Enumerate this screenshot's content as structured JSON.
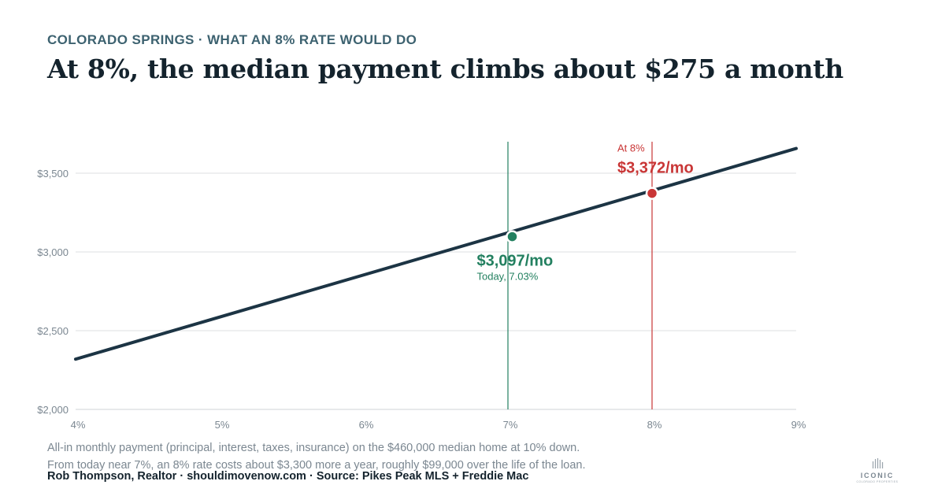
{
  "kicker": "COLORADO SPRINGS · WHAT AN 8% RATE WOULD DO",
  "headline": "At 8%, the median payment climbs about $275 a month",
  "chart_data": {
    "type": "line",
    "title": "",
    "xlabel": "",
    "ylabel": "",
    "xlim": [
      4,
      9
    ],
    "ylim": [
      2000,
      3700
    ],
    "x_ticks": [
      4,
      5,
      6,
      7,
      8,
      9
    ],
    "x_tick_labels": [
      "4%",
      "5%",
      "6%",
      "7%",
      "8%",
      "9%"
    ],
    "y_ticks": [
      2000,
      2500,
      3000,
      3500
    ],
    "y_tick_labels": [
      "$2,000",
      "$2,500",
      "$3,000",
      "$3,500"
    ],
    "grid": "horizontal",
    "series": [
      {
        "name": "",
        "x": [
          4,
          4.5,
          5,
          5.5,
          6,
          6.5,
          7,
          7.03,
          7.5,
          8,
          8.5,
          9
        ],
        "y": [
          2319,
          2447,
          2575,
          2707,
          2842,
          2980,
          3121,
          3097,
          3239,
          3372,
          3513,
          3657
        ],
        "color": "#1c3444"
      }
    ],
    "annotations": [
      {
        "key": "today",
        "x": 7.03,
        "y": 3097,
        "value_label": "$3,097/mo",
        "caption": "Today, 7.03%",
        "color": "#238060",
        "vline_x": 7
      },
      {
        "key": "eight",
        "x": 8,
        "y": 3372,
        "value_label": "$3,372/mo",
        "caption": "At 8%",
        "color": "#c93636",
        "vline_x": 8
      }
    ]
  },
  "notes": {
    "line1": "All-in monthly payment (principal, interest, taxes, insurance) on the $460,000 median home at 10% down.",
    "line2": "From today near 7%, an 8% rate costs about $3,300 more a year, roughly $99,000 over the life of the loan."
  },
  "footer": "Rob Thompson, Realtor  ·  shouldimovenow.com  ·  Source: Pikes Peak MLS + Freddie Mac",
  "logo": {
    "word": "ICONIC",
    "sub": "COLORADO PROPERTIES"
  },
  "colors": {
    "line": "#1c3444",
    "today": "#238060",
    "eight": "#c93636",
    "grid": "#dcdfe2",
    "tick": "#7b8791",
    "kicker": "#3d6270"
  }
}
